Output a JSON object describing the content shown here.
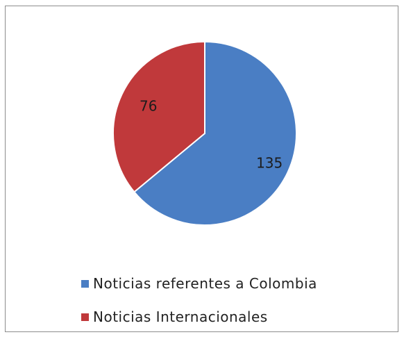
{
  "chart_data": {
    "type": "pie",
    "categories": [
      "Noticias referentes a Colombia",
      "Noticias Internacionales"
    ],
    "values": [
      135,
      76
    ],
    "data_labels": [
      "135",
      "76"
    ],
    "colors": [
      "#4a7ec4",
      "#c0393b"
    ],
    "legend": {
      "position": "bottom",
      "entries": [
        "Noticias referentes a Colombia",
        "Noticias Internacionales"
      ]
    },
    "start_angle": "12 o'clock",
    "direction": "clockwise"
  }
}
